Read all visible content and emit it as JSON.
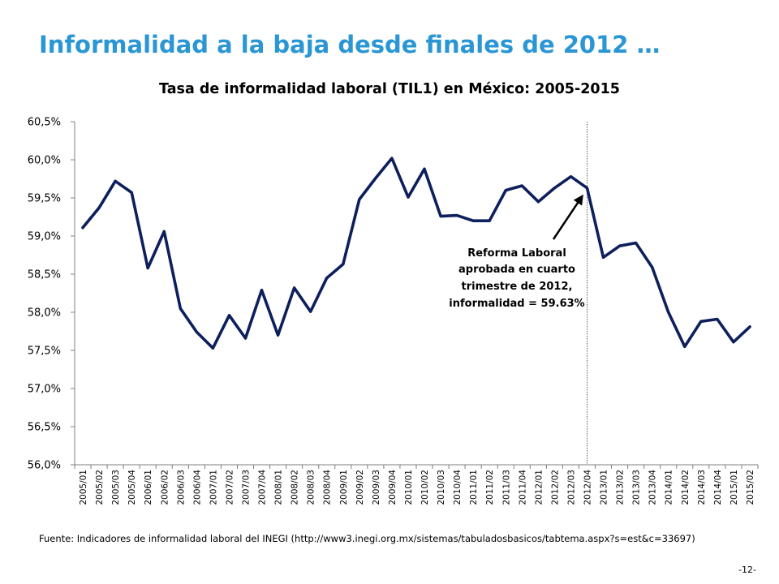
{
  "slide": {
    "title": "Informalidad a la baja desde finales de 2012 …",
    "source": "Fuente: Indicadores de informalidad laboral del INEGI (http://www3.inegi.org.mx/sistemas/tabuladosbasicos/tabtema.aspx?s=est&c=33697)",
    "page_number": "-12-"
  },
  "chart_data": {
    "type": "line",
    "title": "Tasa de informalidad  laboral (TIL1) en México: 2005-2015",
    "xlabel": "",
    "ylabel": "",
    "ylim": [
      56.0,
      60.5
    ],
    "y_ticks": [
      "56,0%",
      "56,5%",
      "57,0%",
      "57,5%",
      "58,0%",
      "58,5%",
      "59,0%",
      "59,5%",
      "60,0%",
      "60,5%"
    ],
    "grid": false,
    "legend": "none",
    "categories": [
      "2005/01",
      "2005/02",
      "2005/03",
      "2005/04",
      "2006/01",
      "2006/02",
      "2006/03",
      "2006/04",
      "2007/01",
      "2007/02",
      "2007/03",
      "2007/04",
      "2008/01",
      "2008/02",
      "2008/03",
      "2008/04",
      "2009/01",
      "2009/02",
      "2009/03",
      "2009/04",
      "2010/01",
      "2010/02",
      "2010/03",
      "2010/04",
      "2011/01",
      "2011/02",
      "2011/03",
      "2011/04",
      "2012/01",
      "2012/02",
      "2012/03",
      "2012/04",
      "2013/01",
      "2013/02",
      "2013/03",
      "2013/04",
      "2014/01",
      "2014/02",
      "2014/03",
      "2014/04",
      "2015/01",
      "2015/02"
    ],
    "series": [
      {
        "values": [
          59.11,
          59.37,
          59.72,
          59.57,
          58.58,
          59.06,
          58.05,
          57.74,
          57.53,
          57.96,
          57.66,
          58.29,
          57.7,
          58.32,
          58.01,
          58.45,
          58.63,
          59.48,
          59.76,
          60.02,
          59.51,
          59.88,
          59.26,
          59.27,
          59.2,
          59.2,
          59.6,
          59.66,
          59.45,
          59.63,
          59.78,
          59.63,
          58.72,
          58.87,
          58.91,
          58.59,
          58.0,
          57.55,
          57.88,
          57.91,
          57.61,
          57.81
        ],
        "color": "#0d1f5c"
      }
    ],
    "reference_line": {
      "category": "2012/04"
    },
    "annotation": {
      "lines": [
        "Reforma Laboral",
        "aprobada en cuarto",
        "trimestre de 2012,",
        "informalidad = 59.63%"
      ],
      "target_category": "2012/04",
      "target_value": 59.63
    }
  }
}
